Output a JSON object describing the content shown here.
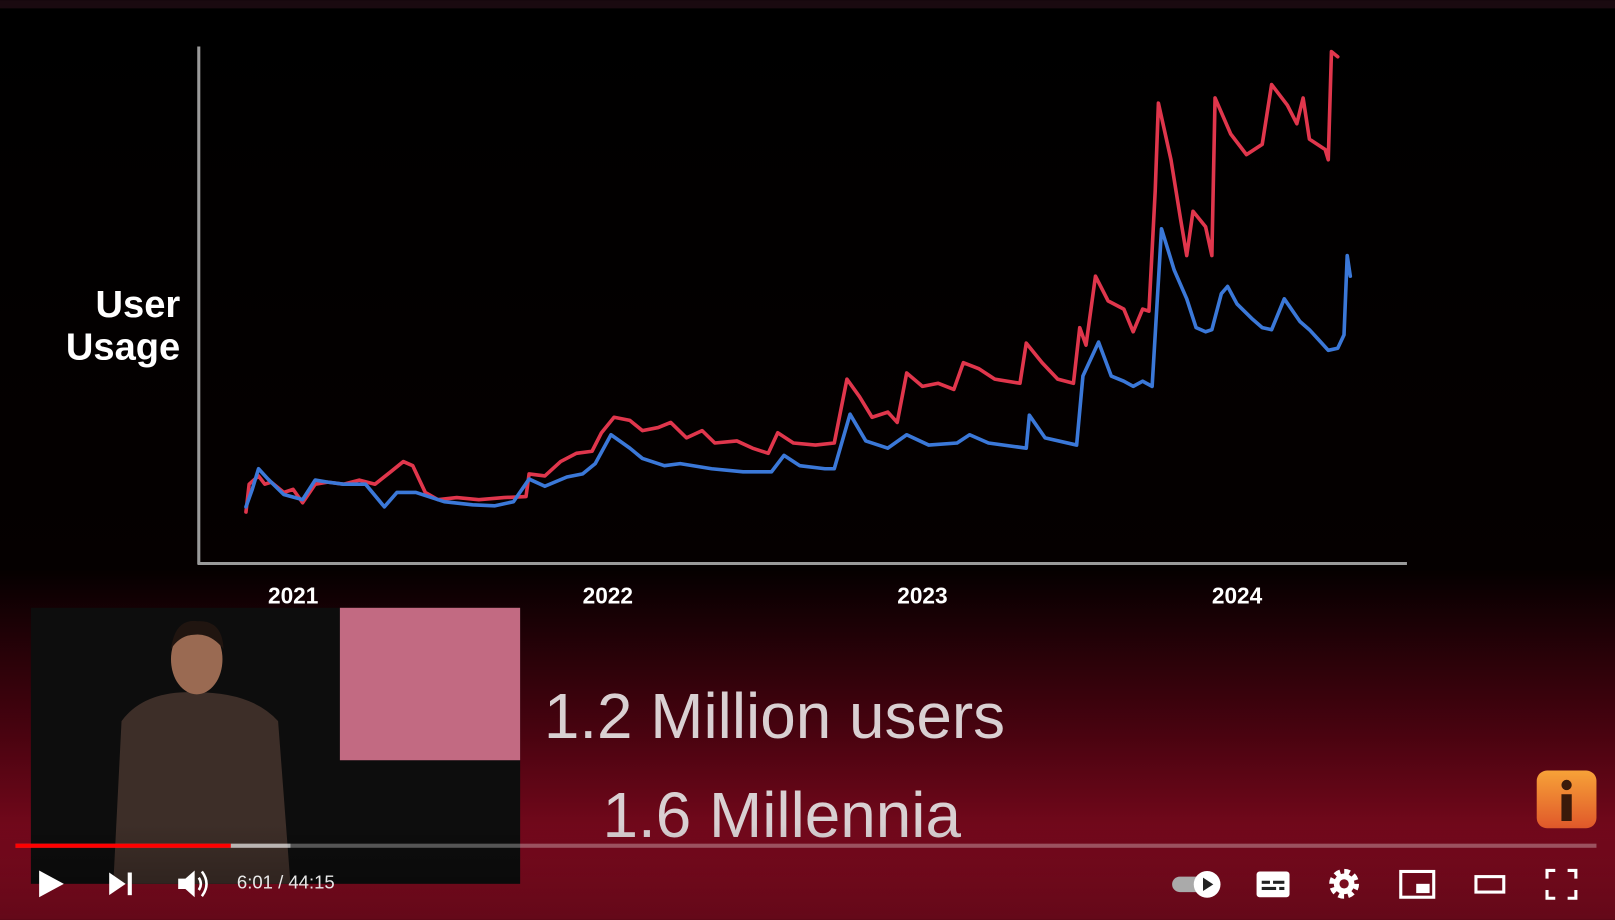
{
  "chart_data": {
    "type": "line",
    "ylabel_lines": [
      "User",
      "Usage"
    ],
    "xlim": [
      2020.7,
      2024.54
    ],
    "xticks": [
      2021,
      2022,
      2023,
      2024
    ],
    "ylim": [
      0,
      500
    ],
    "series": [
      {
        "color": "#e0364c",
        "x": [
          2020.85,
          2020.86,
          2020.89,
          2020.91,
          2020.93,
          2020.97,
          2021.0,
          2021.03,
          2021.07,
          2021.11,
          2021.16,
          2021.21,
          2021.26,
          2021.31,
          2021.35,
          2021.38,
          2021.42,
          2021.46,
          2021.52,
          2021.59,
          2021.67,
          2021.74,
          2021.75,
          2021.8,
          2021.85,
          2021.9,
          2021.95,
          2021.98,
          2022.02,
          2022.07,
          2022.11,
          2022.16,
          2022.2,
          2022.25,
          2022.3,
          2022.34,
          2022.41,
          2022.46,
          2022.51,
          2022.54,
          2022.59,
          2022.66,
          2022.72,
          2022.76,
          2022.8,
          2022.84,
          2022.89,
          2022.92,
          2022.95,
          2023.0,
          2023.05,
          2023.1,
          2023.13,
          2023.18,
          2023.23,
          2023.31,
          2023.33,
          2023.38,
          2023.43,
          2023.48,
          2023.5,
          2023.52,
          2023.55,
          2023.59,
          2023.64,
          2023.67,
          2023.7,
          2023.72,
          2023.74,
          2023.75,
          2023.79,
          2023.82,
          2023.84,
          2023.86,
          2023.9,
          2023.92,
          2023.93,
          2023.98,
          2024.03,
          2024.08,
          2024.11,
          2024.16,
          2024.19,
          2024.21,
          2024.23,
          2024.28,
          2024.29,
          2024.3,
          2024.32
        ],
        "values": [
          50,
          77,
          85,
          77,
          79,
          69,
          72,
          59,
          77,
          79,
          77,
          81,
          77,
          89,
          99,
          95,
          69,
          62,
          64,
          62,
          64,
          65,
          87,
          85,
          99,
          107,
          109,
          127,
          142,
          139,
          129,
          132,
          137,
          122,
          129,
          117,
          119,
          112,
          107,
          127,
          117,
          115,
          117,
          179,
          162,
          142,
          147,
          137,
          185,
          172,
          175,
          169,
          195,
          189,
          179,
          175,
          214,
          195,
          179,
          175,
          229,
          212,
          279,
          255,
          247,
          225,
          247,
          245,
          362,
          447,
          392,
          335,
          299,
          342,
          327,
          299,
          452,
          417,
          397,
          407,
          465,
          445,
          427,
          452,
          412,
          402,
          392,
          497,
          492
        ]
      },
      {
        "color": "#3b78d8",
        "x": [
          2020.85,
          2020.87,
          2020.89,
          2020.92,
          2020.97,
          2021.03,
          2021.07,
          2021.11,
          2021.16,
          2021.23,
          2021.29,
          2021.33,
          2021.39,
          2021.48,
          2021.57,
          2021.64,
          2021.7,
          2021.75,
          2021.8,
          2021.87,
          2021.92,
          2021.96,
          2022.01,
          2022.07,
          2022.11,
          2022.18,
          2022.23,
          2022.33,
          2022.43,
          2022.52,
          2022.56,
          2022.61,
          2022.69,
          2022.72,
          2022.77,
          2022.82,
          2022.89,
          2022.95,
          2023.02,
          2023.11,
          2023.15,
          2023.21,
          2023.33,
          2023.34,
          2023.39,
          2023.49,
          2023.51,
          2023.56,
          2023.6,
          2023.64,
          2023.67,
          2023.7,
          2023.73,
          2023.76,
          2023.8,
          2023.84,
          2023.87,
          2023.9,
          2023.92,
          2023.95,
          2023.97,
          2024.0,
          2024.05,
          2024.08,
          2024.11,
          2024.15,
          2024.2,
          2024.23,
          2024.26,
          2024.29,
          2024.32,
          2024.34,
          2024.35,
          2024.36
        ],
        "values": [
          55,
          72,
          92,
          82,
          67,
          62,
          81,
          79,
          77,
          77,
          55,
          69,
          69,
          60,
          57,
          56,
          60,
          82,
          75,
          84,
          87,
          97,
          125,
          112,
          102,
          95,
          97,
          92,
          89,
          89,
          105,
          95,
          92,
          92,
          145,
          119,
          112,
          125,
          115,
          117,
          125,
          117,
          112,
          144,
          122,
          115,
          182,
          215,
          182,
          177,
          172,
          177,
          172,
          325,
          285,
          257,
          229,
          225,
          227,
          262,
          269,
          252,
          237,
          229,
          227,
          257,
          235,
          227,
          217,
          207,
          209,
          222,
          299,
          279
        ]
      }
    ]
  },
  "slide": {
    "line1": "1.2 Million users",
    "line2": "1.6 Millennia"
  },
  "player": {
    "time": "6:01 / 44:15"
  }
}
